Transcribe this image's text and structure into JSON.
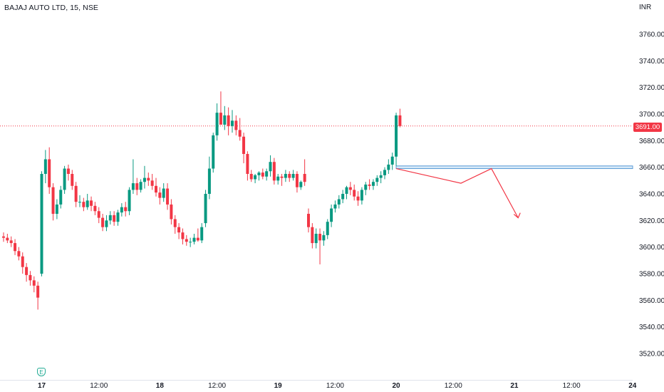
{
  "header": {
    "title": "BAJAJ AUTO LTD, 15, NSE",
    "currency": "INR"
  },
  "current_price_label": "3691.00",
  "earnings_marker": "E",
  "colors": {
    "up": "#089981",
    "down": "#f23645",
    "zone_fill": "#d6e9f8",
    "zone_border": "#5b9bd5",
    "price_line": "#f23645"
  },
  "chart_data": {
    "type": "candlestick",
    "title": "BAJAJ AUTO LTD, 15, NSE",
    "ylabel": "INR",
    "ylim": [
      3508,
      3788
    ],
    "y_ticks": [
      3520,
      3540,
      3560,
      3580,
      3600,
      3620,
      3640,
      3660,
      3680,
      3700,
      3720,
      3740,
      3760
    ],
    "y_tick_labels": [
      "3520.00",
      "3540.00",
      "3560.00",
      "3580.00",
      "3600.00",
      "3620.00",
      "3640.00",
      "3660.00",
      "3680.00",
      "3700.00",
      "3720.00",
      "3740.00",
      "3760.00"
    ],
    "x_ticks": [
      {
        "label": "17",
        "index": 10,
        "bold": true
      },
      {
        "label": "12:00",
        "index": 25
      },
      {
        "label": "18",
        "index": 41,
        "bold": true
      },
      {
        "label": "12:00",
        "index": 56
      },
      {
        "label": "19",
        "index": 72,
        "bold": true
      },
      {
        "label": "12:00",
        "index": 87
      },
      {
        "label": "20",
        "index": 103,
        "bold": true
      },
      {
        "label": "12:00",
        "index": 118
      },
      {
        "label": "21",
        "index": 134,
        "bold": true
      },
      {
        "label": "12:00",
        "index": 149
      },
      {
        "label": "24",
        "index": 165,
        "bold": true
      }
    ],
    "last_price": 3691,
    "candles": [
      [
        3608,
        3611,
        3604,
        3607
      ],
      [
        3607,
        3610,
        3603,
        3605
      ],
      [
        3605,
        3608,
        3600,
        3603
      ],
      [
        3603,
        3606,
        3594,
        3597
      ],
      [
        3597,
        3600,
        3590,
        3593
      ],
      [
        3593,
        3596,
        3580,
        3585
      ],
      [
        3585,
        3588,
        3574,
        3579
      ],
      [
        3579,
        3582,
        3571,
        3575
      ],
      [
        3575,
        3578,
        3566,
        3571
      ],
      [
        3571,
        3574,
        3553,
        3562
      ],
      [
        3580,
        3657,
        3578,
        3655
      ],
      [
        3655,
        3673,
        3648,
        3666
      ],
      [
        3666,
        3675,
        3640,
        3645
      ],
      [
        3645,
        3648,
        3620,
        3625
      ],
      [
        3625,
        3636,
        3621,
        3632
      ],
      [
        3632,
        3646,
        3629,
        3643
      ],
      [
        3643,
        3661,
        3640,
        3659
      ],
      [
        3659,
        3662,
        3650,
        3655
      ],
      [
        3655,
        3658,
        3643,
        3646
      ],
      [
        3646,
        3649,
        3630,
        3634
      ],
      [
        3634,
        3639,
        3630,
        3634
      ],
      [
        3634,
        3637,
        3627,
        3630
      ],
      [
        3630,
        3640,
        3628,
        3635
      ],
      [
        3635,
        3638,
        3627,
        3631
      ],
      [
        3631,
        3634,
        3624,
        3627
      ],
      [
        3627,
        3630,
        3618,
        3622
      ],
      [
        3622,
        3625,
        3612,
        3615
      ],
      [
        3615,
        3624,
        3612,
        3620
      ],
      [
        3620,
        3627,
        3617,
        3624
      ],
      [
        3624,
        3627,
        3616,
        3619
      ],
      [
        3619,
        3628,
        3616,
        3626
      ],
      [
        3626,
        3633,
        3623,
        3630
      ],
      [
        3630,
        3634,
        3623,
        3627
      ],
      [
        3627,
        3645,
        3624,
        3643
      ],
      [
        3643,
        3666,
        3640,
        3648
      ],
      [
        3648,
        3652,
        3639,
        3643
      ],
      [
        3643,
        3651,
        3641,
        3649
      ],
      [
        3649,
        3661,
        3644,
        3652
      ],
      [
        3652,
        3656,
        3646,
        3650
      ],
      [
        3650,
        3655,
        3643,
        3646
      ],
      [
        3646,
        3652,
        3638,
        3641
      ],
      [
        3641,
        3645,
        3632,
        3637
      ],
      [
        3637,
        3648,
        3634,
        3644
      ],
      [
        3644,
        3648,
        3628,
        3632
      ],
      [
        3632,
        3636,
        3617,
        3621
      ],
      [
        3621,
        3624,
        3610,
        3615
      ],
      [
        3615,
        3618,
        3606,
        3611
      ],
      [
        3611,
        3614,
        3602,
        3606
      ],
      [
        3606,
        3609,
        3601,
        3604
      ],
      [
        3604,
        3607,
        3600,
        3604
      ],
      [
        3604,
        3610,
        3602,
        3607
      ],
      [
        3607,
        3614,
        3604,
        3605
      ],
      [
        3605,
        3618,
        3603,
        3615
      ],
      [
        3618,
        3643,
        3615,
        3640
      ],
      [
        3640,
        3668,
        3636,
        3659
      ],
      [
        3659,
        3686,
        3656,
        3684
      ],
      [
        3684,
        3708,
        3680,
        3701
      ],
      [
        3701,
        3717,
        3694,
        3692
      ],
      [
        3692,
        3706,
        3688,
        3699
      ],
      [
        3699,
        3705,
        3684,
        3691
      ],
      [
        3691,
        3703,
        3686,
        3695
      ],
      [
        3695,
        3699,
        3684,
        3688
      ],
      [
        3688,
        3697,
        3680,
        3683
      ],
      [
        3683,
        3686,
        3663,
        3670
      ],
      [
        3670,
        3672,
        3650,
        3655
      ],
      [
        3655,
        3658,
        3649,
        3651
      ],
      [
        3651,
        3655,
        3648,
        3654
      ],
      [
        3654,
        3657,
        3650,
        3656
      ],
      [
        3656,
        3659,
        3651,
        3653
      ],
      [
        3653,
        3659,
        3650,
        3657
      ],
      [
        3657,
        3669,
        3653,
        3664
      ],
      [
        3664,
        3667,
        3647,
        3650
      ],
      [
        3650,
        3655,
        3647,
        3653
      ],
      [
        3653,
        3655,
        3646,
        3652
      ],
      [
        3652,
        3658,
        3649,
        3655
      ],
      [
        3655,
        3657,
        3649,
        3652
      ],
      [
        3652,
        3658,
        3650,
        3655
      ],
      [
        3655,
        3657,
        3641,
        3645
      ],
      [
        3645,
        3650,
        3643,
        3649
      ],
      [
        3655,
        3666,
        3646,
        3649
      ],
      [
        3625,
        3629,
        3611,
        3615
      ],
      [
        3615,
        3618,
        3599,
        3603
      ],
      [
        3603,
        3614,
        3599,
        3610
      ],
      [
        3610,
        3614,
        3587,
        3605
      ],
      [
        3605,
        3612,
        3601,
        3609
      ],
      [
        3609,
        3621,
        3606,
        3619
      ],
      [
        3619,
        3632,
        3615,
        3629
      ],
      [
        3629,
        3635,
        3626,
        3632
      ],
      [
        3632,
        3639,
        3629,
        3636
      ],
      [
        3636,
        3643,
        3633,
        3640
      ],
      [
        3640,
        3646,
        3636,
        3645
      ],
      [
        3645,
        3649,
        3639,
        3643
      ],
      [
        3643,
        3647,
        3635,
        3638
      ],
      [
        3638,
        3642,
        3631,
        3635
      ],
      [
        3635,
        3645,
        3632,
        3643
      ],
      [
        3643,
        3649,
        3639,
        3647
      ],
      [
        3647,
        3651,
        3643,
        3646
      ],
      [
        3646,
        3651,
        3643,
        3649
      ],
      [
        3649,
        3654,
        3646,
        3652
      ],
      [
        3652,
        3657,
        3648,
        3654
      ],
      [
        3654,
        3660,
        3651,
        3658
      ],
      [
        3658,
        3666,
        3655,
        3662
      ],
      [
        3662,
        3671,
        3658,
        3668
      ],
      [
        3668,
        3701,
        3661,
        3699
      ],
      [
        3699,
        3704,
        3690,
        3691
      ]
    ],
    "candle_x_start": 8,
    "supply_zone": {
      "y_top": 3661,
      "y_bottom": 3659,
      "from_candle": 103
    },
    "projection_path": [
      [
        3659,
        "c103"
      ],
      [
        3648,
        "c120"
      ],
      [
        3659,
        "c128"
      ],
      [
        3622,
        "c135"
      ]
    ]
  }
}
